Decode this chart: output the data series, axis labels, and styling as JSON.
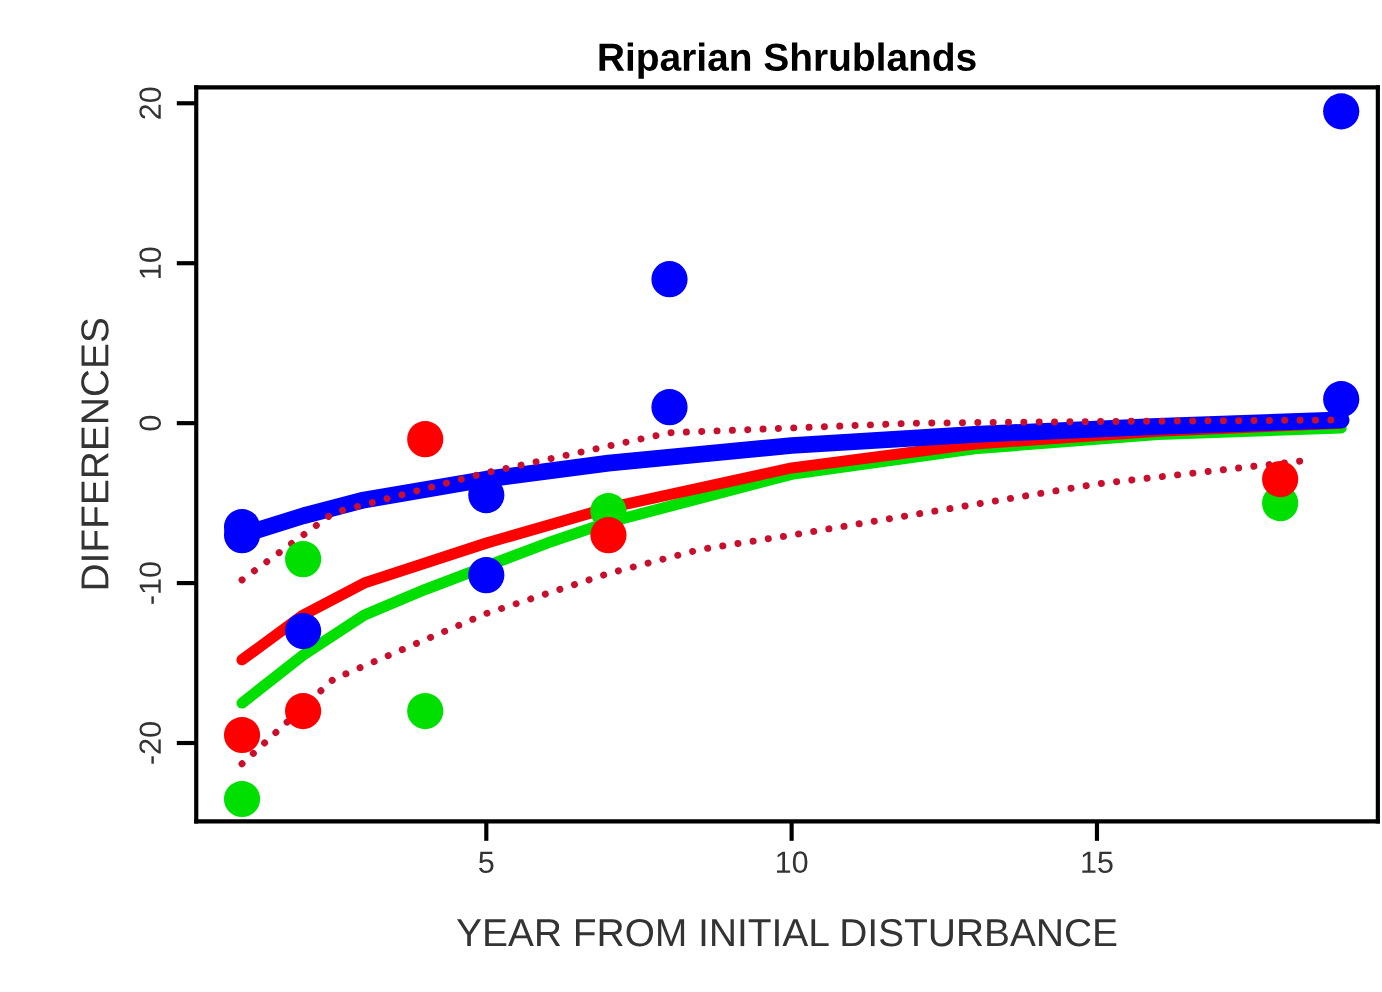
{
  "chart_data": {
    "type": "scatter",
    "title": "Riparian Shrublands",
    "xlabel": "YEAR FROM INITIAL DISTURBANCE",
    "ylabel": "DIFFERENCES",
    "xlim": [
      0.25,
      19.6
    ],
    "ylim": [
      -24.9,
      21
    ],
    "xticks": [
      5,
      10,
      15
    ],
    "yticks": [
      -20,
      -10,
      0,
      10,
      20
    ],
    "grid": false,
    "legend": false,
    "series": [
      {
        "type": "line",
        "color": "#c8102e",
        "line_style": "dotted",
        "x": [
          1,
          2.5,
          5,
          8,
          12,
          15,
          19
        ],
        "values": [
          -9.8,
          -5.6,
          -3.1,
          -0.6,
          0,
          0.1,
          0.2
        ]
      },
      {
        "type": "line",
        "color": "#c8102e",
        "line_style": "dotted",
        "x": [
          1,
          2.5,
          5,
          7,
          8.5,
          10,
          15,
          18.5
        ],
        "values": [
          -21.3,
          -16,
          -11.9,
          -9.4,
          -7.9,
          -7,
          -3.8,
          -2.3
        ]
      },
      {
        "type": "line",
        "color": "#00e000",
        "line_style": "solid",
        "x": [
          1,
          2,
          3,
          4,
          6,
          7,
          10,
          13,
          16,
          19
        ],
        "values": [
          -17.5,
          -14.5,
          -12,
          -10.4,
          -7.5,
          -6.2,
          -3.2,
          -1.6,
          -0.7,
          -0.3
        ]
      },
      {
        "type": "line",
        "color": "#ff0000",
        "line_style": "solid",
        "x": [
          1,
          2,
          3,
          5,
          7,
          10,
          13,
          16,
          19
        ],
        "values": [
          -14.8,
          -12,
          -10,
          -7.5,
          -5.3,
          -2.8,
          -1.3,
          -0.5,
          0
        ]
      },
      {
        "type": "line",
        "color": "#0000ff",
        "line_style": "solid",
        "x": [
          1,
          2,
          3,
          5,
          7,
          10,
          13,
          16,
          19
        ],
        "values": [
          -7,
          -5.8,
          -4.8,
          -3.5,
          -2.5,
          -1.4,
          -0.7,
          -0.2,
          0.2
        ]
      },
      {
        "color": "#00e000",
        "marker": "circle",
        "x": [
          1,
          2,
          4,
          7,
          18
        ],
        "values": [
          -23.5,
          -8.5,
          -18,
          -5.5,
          -5
        ]
      },
      {
        "color": "#ff0000",
        "marker": "circle",
        "x": [
          1,
          2,
          4,
          7,
          18
        ],
        "values": [
          -19.5,
          -18,
          -1,
          -7,
          -3.5
        ]
      },
      {
        "color": "#0000ff",
        "marker": "circle",
        "x": [
          1,
          1,
          2,
          5,
          5,
          8,
          8,
          19,
          19
        ],
        "values": [
          -6.5,
          -7,
          -13,
          -4.5,
          -9.5,
          9,
          1,
          19.5,
          1.5
        ]
      }
    ]
  }
}
